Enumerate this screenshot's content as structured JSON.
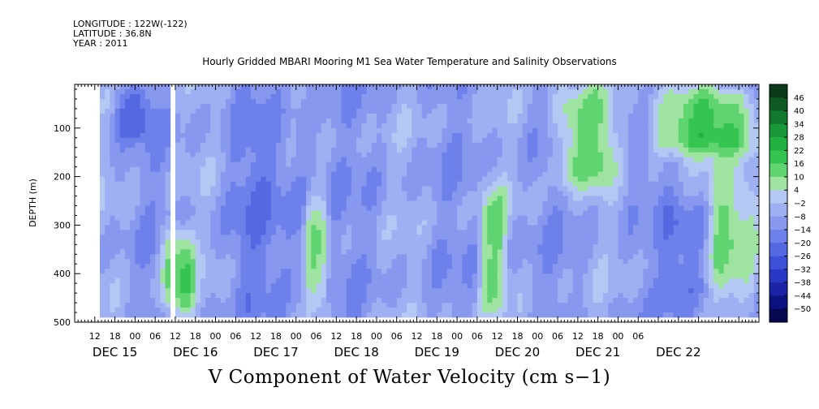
{
  "header": {
    "longitude": "LONGITUDE : 122W(-122)",
    "latitude": "LATITUDE : 36.8N",
    "year": "YEAR : 2011"
  },
  "chart_data": {
    "type": "heatmap",
    "title": "Hourly Gridded MBARI Mooring M1 Sea Water Temperature and Salinity Observations",
    "variable_label": "V Component of Water Velocity (cm s−1)",
    "ylabel": "DEPTH (m)",
    "y_axis": {
      "ylim": [
        500,
        10
      ],
      "inverted": true,
      "ticks": [
        100,
        200,
        300,
        400,
        500
      ]
    },
    "x_axis": {
      "range_hours": [
        0,
        204
      ],
      "hour_labels": [
        "12",
        "18",
        "00",
        "06",
        "12",
        "18",
        "00",
        "06",
        "12",
        "18",
        "00",
        "06",
        "12",
        "18",
        "00",
        "06",
        "12",
        "18",
        "00",
        "06",
        "12",
        "18",
        "00",
        "06",
        "12",
        "18",
        "00",
        "06"
      ],
      "date_labels": [
        "DEC 15",
        "DEC 16",
        "DEC 17",
        "DEC 18",
        "DEC 19",
        "DEC 20",
        "DEC 21",
        "DEC 22"
      ]
    },
    "colorbar": {
      "levels": [
        46,
        40,
        34,
        28,
        22,
        16,
        10,
        4,
        -2,
        -8,
        -14,
        -20,
        -26,
        -32,
        -38,
        -44,
        -50
      ],
      "label_texts": [
        "46",
        "40",
        "34",
        "28",
        "22",
        "16",
        "10",
        "4",
        "−2",
        "−8",
        "−14",
        "−20",
        "−26",
        "−32",
        "−38",
        "−44",
        "−50"
      ],
      "colors": [
        "#0a3a18",
        "#0d5a22",
        "#11782d",
        "#189838",
        "#22b040",
        "#36c451",
        "#60d470",
        "#9ee4a0",
        "#b4c8f4",
        "#9eb0f2",
        "#8898ee",
        "#6e80ea",
        "#5468e2",
        "#3c50d8",
        "#2838c4",
        "#1a24a4",
        "#0c1280",
        "#060850"
      ]
    },
    "data_extent": {
      "time_start_hour": 7.5,
      "time_end_hour": 204,
      "depth_top": 10,
      "depth_bottom": 485,
      "gap_hours": [
        27.5,
        29.5
      ]
    },
    "field": {
      "note_dominant": "weak flow: mostly -14 to 4 cm/s with green positive bands",
      "features": [
        {
          "hours": [
            25,
            35
          ],
          "depth": [
            300,
            485
          ],
          "value": 14
        },
        {
          "hours": [
            68,
            75
          ],
          "depth": [
            220,
            485
          ],
          "value": 10
        },
        {
          "hours": [
            120,
            128
          ],
          "depth": [
            210,
            480
          ],
          "value": 8
        },
        {
          "hours": [
            142,
            160
          ],
          "depth": [
            10,
            220
          ],
          "value": 12
        },
        {
          "hours": [
            170,
            204
          ],
          "depth": [
            10,
            150
          ],
          "value": 16
        },
        {
          "hours": [
            188,
            204
          ],
          "depth": [
            150,
            470
          ],
          "value": 10
        },
        {
          "hours": [
            10,
            22
          ],
          "depth": [
            10,
            120
          ],
          "value": -22
        },
        {
          "hours": [
            45,
            75
          ],
          "depth": [
            60,
            460
          ],
          "value": -16
        },
        {
          "hours": [
            175,
            190
          ],
          "depth": [
            250,
            470
          ],
          "value": -20
        }
      ]
    }
  }
}
